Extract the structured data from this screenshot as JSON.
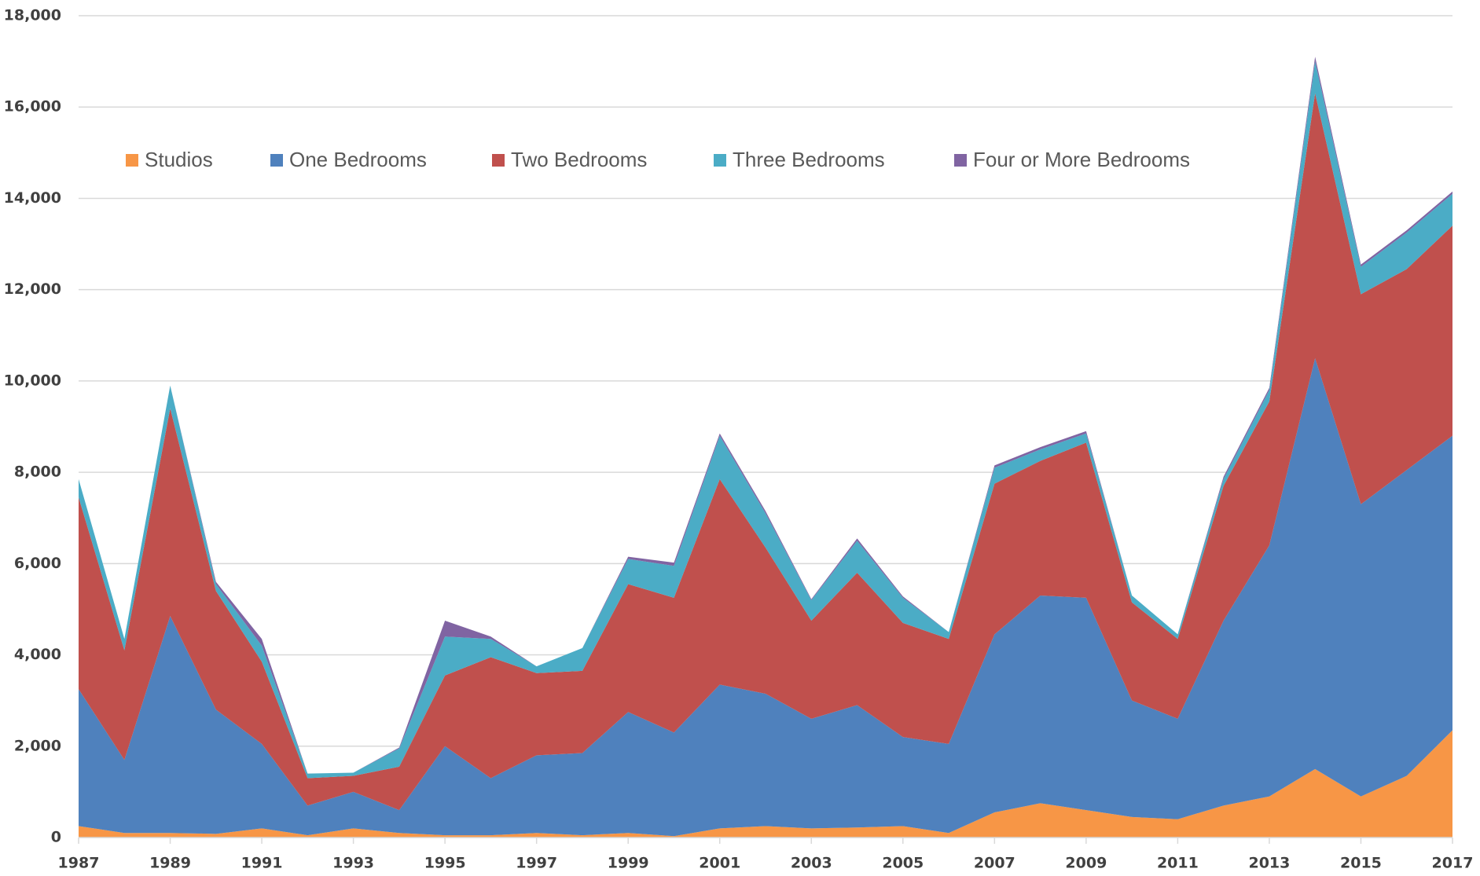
{
  "chart_data": {
    "type": "stacked_area",
    "x": [
      1987,
      1988,
      1989,
      1990,
      1991,
      1992,
      1993,
      1994,
      1995,
      1996,
      1997,
      1998,
      1999,
      2000,
      2001,
      2002,
      2003,
      2004,
      2005,
      2006,
      2007,
      2008,
      2009,
      2010,
      2011,
      2012,
      2013,
      2014,
      2015,
      2016,
      2017
    ],
    "xlim": [
      1987,
      2017
    ],
    "xticks": [
      1987,
      1989,
      1991,
      1993,
      1995,
      1997,
      1999,
      2001,
      2003,
      2005,
      2007,
      2009,
      2011,
      2013,
      2015,
      2017
    ],
    "ylim": [
      0,
      18000
    ],
    "yticks": [
      0,
      {
        "value": 2000,
        "label": "2,000"
      },
      {
        "value": 4000,
        "label": "4,000"
      },
      {
        "value": 6000,
        "label": "6,000"
      },
      {
        "value": 8000,
        "label": "8,000"
      },
      {
        "value": 10000,
        "label": "10,000"
      },
      {
        "value": 12000,
        "label": "12,000"
      },
      {
        "value": 14000,
        "label": "14,000"
      },
      {
        "value": 16000,
        "label": "16,000"
      },
      {
        "value": 18000,
        "label": "18,000"
      }
    ],
    "grid": true,
    "legend": "top-left",
    "series": [
      {
        "name": "Studios",
        "color": "#f79646",
        "values": [
          250,
          100,
          100,
          80,
          200,
          50,
          200,
          100,
          50,
          50,
          100,
          50,
          100,
          30,
          200,
          250,
          200,
          220,
          250,
          100,
          550,
          750,
          600,
          450,
          400,
          700,
          900,
          1500,
          900,
          1350,
          2350
        ]
      },
      {
        "name": "One Bedrooms",
        "color": "#4f81bd",
        "values": [
          3000,
          1600,
          4750,
          2720,
          1850,
          650,
          800,
          500,
          1950,
          1250,
          1700,
          1800,
          2650,
          2270,
          3150,
          2900,
          2400,
          2680,
          1950,
          1950,
          3900,
          4550,
          4650,
          2550,
          2200,
          4050,
          5500,
          9000,
          6400,
          6700,
          6450
        ]
      },
      {
        "name": "Two Bedrooms",
        "color": "#c0504d",
        "values": [
          4200,
          2400,
          4550,
          2600,
          1800,
          600,
          350,
          950,
          1550,
          2650,
          1800,
          1800,
          2800,
          2950,
          4500,
          3200,
          2150,
          2900,
          2500,
          2300,
          3300,
          2950,
          3400,
          2150,
          1750,
          2950,
          3150,
          5800,
          4600,
          4400,
          4600
        ]
      },
      {
        "name": "Three Bedrooms",
        "color": "#4bacc6",
        "values": [
          400,
          250,
          500,
          150,
          350,
          100,
          70,
          400,
          850,
          400,
          150,
          500,
          550,
          700,
          950,
          750,
          450,
          700,
          550,
          150,
          350,
          250,
          200,
          150,
          100,
          150,
          250,
          700,
          600,
          800,
          700
        ]
      },
      {
        "name": "Four or More Bedrooms",
        "color": "#8064a2",
        "values": [
          0,
          0,
          0,
          50,
          150,
          0,
          0,
          20,
          350,
          50,
          0,
          0,
          50,
          70,
          50,
          50,
          20,
          50,
          30,
          0,
          50,
          50,
          50,
          0,
          0,
          50,
          50,
          100,
          50,
          50,
          50
        ]
      }
    ]
  }
}
